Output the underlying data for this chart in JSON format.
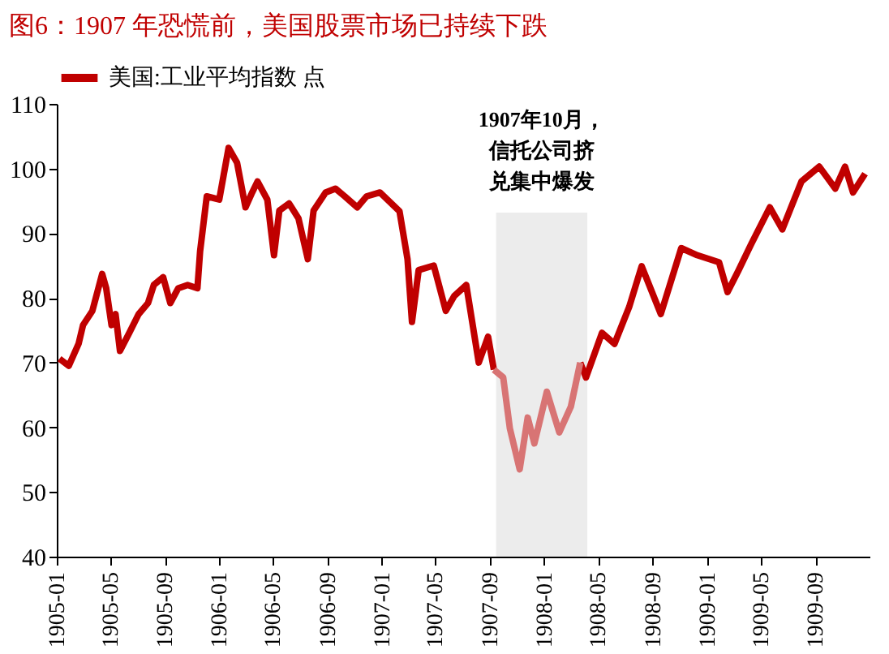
{
  "chart_data": {
    "type": "line",
    "title": "图6：1907 年恐慌前，美国股票市场已持续下跌",
    "series": [
      {
        "name": "美国:工业平均指数 点",
        "color": "#c00000",
        "x": [
          "1905-01-07",
          "1905-01-28",
          "1905-02-19",
          "1905-03-01",
          "1905-03-22",
          "1905-04-13",
          "1905-04-22",
          "1905-05-04",
          "1905-05-13",
          "1905-05-23",
          "1905-06-13",
          "1905-07-04",
          "1905-07-25",
          "1905-08-07",
          "1905-08-28",
          "1905-09-13",
          "1905-10-01",
          "1905-10-22",
          "1905-11-13",
          "1905-11-19",
          "1905-12-04",
          "1906-01-01",
          "1906-01-22",
          "1906-02-10",
          "1906-03-01",
          "1906-03-16",
          "1906-03-28",
          "1906-04-19",
          "1906-05-04",
          "1906-05-16",
          "1906-06-07",
          "1906-06-28",
          "1906-07-19",
          "1906-08-01",
          "1906-08-28",
          "1906-09-19",
          "1906-10-10",
          "1906-11-07",
          "1906-11-28",
          "1906-12-28",
          "1907-02-10",
          "1907-02-28",
          "1907-03-10",
          "1907-03-25",
          "1907-04-28",
          "1907-05-25",
          "1907-06-13",
          "1907-07-10",
          "1907-08-07",
          "1907-08-28",
          "1907-09-10",
          "1907-11-01",
          "1908-03-22",
          "1908-04-04",
          "1908-05-10",
          "1908-06-07",
          "1908-07-10",
          "1908-08-07",
          "1908-09-19",
          "1908-11-04",
          "1908-12-10",
          "1909-01-28",
          "1909-02-16",
          "1909-03-13",
          "1909-04-10",
          "1909-05-22",
          "1909-06-19",
          "1909-08-01",
          "1909-09-10",
          "1909-10-16",
          "1909-11-07",
          "1909-11-25",
          "1909-12-22"
        ],
        "values": [
          70.6,
          69.5,
          72.9,
          75.8,
          78,
          83.7,
          81.5,
          75.8,
          77.5,
          71.8,
          74.6,
          77.5,
          79.2,
          82,
          83.2,
          79.2,
          81.5,
          82,
          81.5,
          87.2,
          95.7,
          95.2,
          103.2,
          100.9,
          94,
          96.3,
          98,
          95.2,
          86.6,
          93.5,
          94.6,
          92.3,
          86,
          93.5,
          96.3,
          96.9,
          95.7,
          94,
          95.7,
          96.3,
          93.4,
          86,
          76.3,
          84.3,
          85,
          78,
          80.3,
          82,
          70,
          74,
          68.9,
          null,
          70,
          67.7,
          74.6,
          72.9,
          78.6,
          84.9,
          77.5,
          87.7,
          86.6,
          85.5,
          80.9,
          84.3,
          88.3,
          94,
          90.6,
          98,
          100.3,
          96.9,
          100.3,
          96.3,
          99.2
        ]
      },
      {
        "color": "#d87474",
        "x": [
          "1907-09-10",
          "1907-10-01",
          "1907-10-16",
          "1907-11-07",
          "1907-11-25",
          "1907-12-10",
          "1908-01-07",
          "1908-02-04",
          "1908-03-01",
          "1908-03-22"
        ],
        "values": [
          68.9,
          67.7,
          59.8,
          53.5,
          61.5,
          57.5,
          65.5,
          59.2,
          63.2,
          70
        ]
      }
    ],
    "xlim": [
      "1905-01-01",
      "1910-01-01"
    ],
    "xticks": [
      "1905-01",
      "1905-05",
      "1905-09",
      "1906-01",
      "1906-05",
      "1906-09",
      "1907-01",
      "1907-05",
      "1907-09",
      "1908-01",
      "1908-05",
      "1908-09",
      "1909-01",
      "1909-05",
      "1909-09"
    ],
    "ylim": [
      40,
      110
    ],
    "yticks": [
      40,
      50,
      60,
      70,
      80,
      90,
      100,
      110
    ],
    "bands": [
      {
        "axis": "x",
        "from": "1907-09-15",
        "to": "1908-04-07",
        "label": "1907年10月，信托公司挤兑集中爆发",
        "color": "#ececec"
      }
    ],
    "grid": false,
    "legend": "top",
    "line_style": "solid",
    "marker": "none"
  }
}
